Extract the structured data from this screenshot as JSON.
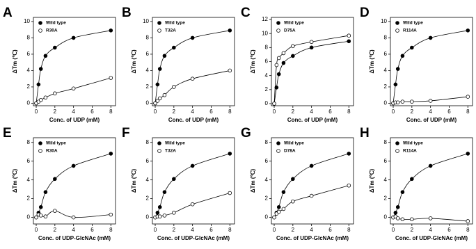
{
  "chart_data": [
    {
      "type": "scatter",
      "title": "A",
      "xlabel": "Conc. of UDP (mM)",
      "ylabel": "ΔTm (℃)",
      "xlim": [
        -0.3,
        8.5
      ],
      "ylim": [
        -0.3,
        10.5
      ],
      "xticks": [
        0,
        2,
        4,
        6,
        8
      ],
      "yticks": [
        0,
        2,
        4,
        6,
        8,
        10
      ],
      "legend": "upper left",
      "x": [
        0,
        0.25,
        0.5,
        1,
        2,
        4,
        8
      ],
      "series": [
        {
          "name": "Wild type",
          "color": "#000000",
          "filled": true,
          "values": [
            0,
            2.3,
            4.2,
            5.8,
            6.8,
            8.0,
            8.9
          ]
        },
        {
          "name": "R30A",
          "color": "#000000",
          "filled": false,
          "values": [
            0,
            0.2,
            0.4,
            0.7,
            1.2,
            1.8,
            3.1
          ]
        }
      ]
    },
    {
      "type": "scatter",
      "title": "B",
      "xlabel": "Conc. of UDP (mM)",
      "ylabel": "ΔTm (℃)",
      "xlim": [
        -0.3,
        8.5
      ],
      "ylim": [
        -0.3,
        10.5
      ],
      "xticks": [
        0,
        2,
        4,
        6,
        8
      ],
      "yticks": [
        0,
        2,
        4,
        6,
        8,
        10
      ],
      "legend": "upper left",
      "x": [
        0,
        0.25,
        0.5,
        1,
        2,
        4,
        8
      ],
      "series": [
        {
          "name": "Wild type",
          "color": "#000000",
          "filled": true,
          "values": [
            0,
            2.3,
            4.2,
            5.8,
            6.8,
            8.0,
            8.9
          ]
        },
        {
          "name": "T32A",
          "color": "#000000",
          "filled": false,
          "values": [
            0,
            0.3,
            0.6,
            1.0,
            2.0,
            3.0,
            4.0
          ]
        }
      ]
    },
    {
      "type": "scatter",
      "title": "C",
      "xlabel": "Conc. of UDP (mM)",
      "ylabel": "ΔTm (℃)",
      "xlim": [
        -0.3,
        8.5
      ],
      "ylim": [
        -0.3,
        12.3
      ],
      "xticks": [
        0,
        2,
        4,
        6,
        8
      ],
      "yticks": [
        0,
        2,
        4,
        6,
        8,
        10,
        12
      ],
      "legend": "upper left",
      "x": [
        0,
        0.25,
        0.5,
        1,
        2,
        4,
        8
      ],
      "series": [
        {
          "name": "Wild type",
          "color": "#000000",
          "filled": true,
          "values": [
            0,
            2.3,
            4.2,
            5.8,
            6.8,
            8.0,
            8.9
          ]
        },
        {
          "name": "D75A",
          "color": "#000000",
          "filled": false,
          "values": [
            0,
            5.5,
            6.5,
            7.2,
            8.2,
            8.8,
            9.7
          ]
        }
      ]
    },
    {
      "type": "scatter",
      "title": "D",
      "xlabel": "Conc. of UDP (mM)",
      "ylabel": "ΔTm (℃)",
      "xlim": [
        -0.3,
        8.5
      ],
      "ylim": [
        -0.3,
        10.5
      ],
      "xticks": [
        0,
        2,
        4,
        6,
        8
      ],
      "yticks": [
        0,
        2,
        4,
        6,
        8,
        10
      ],
      "legend": "upper left",
      "x": [
        0,
        0.25,
        0.5,
        1,
        2,
        4,
        8
      ],
      "series": [
        {
          "name": "Wild type",
          "color": "#000000",
          "filled": true,
          "values": [
            0,
            2.3,
            4.2,
            5.8,
            6.8,
            8.0,
            8.9
          ]
        },
        {
          "name": "R114A",
          "color": "#000000",
          "filled": false,
          "values": [
            0,
            0.1,
            0.1,
            0.2,
            0.2,
            0.3,
            0.8
          ]
        }
      ]
    },
    {
      "type": "scatter",
      "title": "E",
      "xlabel": "Conc. of UDP-GlcNAc (mM)",
      "ylabel": "ΔTm (℃)",
      "xlim": [
        -0.3,
        8.5
      ],
      "ylim": [
        -0.7,
        8.5
      ],
      "xticks": [
        0,
        2,
        4,
        6,
        8
      ],
      "yticks": [
        0,
        2,
        4,
        6,
        8
      ],
      "legend": "upper left",
      "x": [
        0,
        0.25,
        0.5,
        1,
        2,
        4,
        8
      ],
      "series": [
        {
          "name": "Wild type",
          "color": "#000000",
          "filled": true,
          "values": [
            0,
            0.5,
            1.1,
            2.7,
            4.1,
            5.5,
            6.8
          ]
        },
        {
          "name": "R30A",
          "color": "#000000",
          "filled": false,
          "values": [
            0,
            0.3,
            0.2,
            0.1,
            0.7,
            0,
            0.3
          ]
        }
      ]
    },
    {
      "type": "scatter",
      "title": "F",
      "xlabel": "Conc. of UDP-GlcNAc (mM)",
      "ylabel": "ΔTm (℃)",
      "xlim": [
        -0.3,
        8.5
      ],
      "ylim": [
        -0.7,
        8.5
      ],
      "xticks": [
        0,
        2,
        4,
        6,
        8
      ],
      "yticks": [
        0,
        2,
        4,
        6,
        8
      ],
      "legend": "upper left",
      "x": [
        0,
        0.25,
        0.5,
        1,
        2,
        4,
        8
      ],
      "series": [
        {
          "name": "Wild type",
          "color": "#000000",
          "filled": true,
          "values": [
            0,
            0.5,
            1.1,
            2.7,
            4.1,
            5.5,
            6.8
          ]
        },
        {
          "name": "T32A",
          "color": "#000000",
          "filled": false,
          "values": [
            0,
            0.1,
            0.1,
            0.2,
            0.5,
            1.4,
            2.6
          ]
        }
      ]
    },
    {
      "type": "scatter",
      "title": "G",
      "xlabel": "Conc. of UDP-GlcNAc (mM)",
      "ylabel": "ΔTm (℃)",
      "xlim": [
        -0.3,
        8.5
      ],
      "ylim": [
        -0.7,
        8.5
      ],
      "xticks": [
        0,
        2,
        4,
        6,
        8
      ],
      "yticks": [
        0,
        2,
        4,
        6,
        8
      ],
      "legend": "upper left",
      "x": [
        0,
        0.25,
        0.5,
        1,
        2,
        4,
        8
      ],
      "series": [
        {
          "name": "Wild type",
          "color": "#000000",
          "filled": true,
          "values": [
            0,
            0.5,
            1.1,
            2.7,
            4.1,
            5.5,
            6.8
          ]
        },
        {
          "name": "D78A",
          "color": "#000000",
          "filled": false,
          "values": [
            0,
            0.4,
            0.6,
            0.9,
            1.7,
            2.3,
            3.4
          ]
        }
      ]
    },
    {
      "type": "scatter",
      "title": "H",
      "xlabel": "Conc. of UDP-GlcNAc (mM)",
      "ylabel": "ΔTm (℃)",
      "xlim": [
        -0.3,
        8.5
      ],
      "ylim": [
        -0.7,
        8.5
      ],
      "xticks": [
        0,
        2,
        4,
        6,
        8
      ],
      "yticks": [
        0,
        2,
        4,
        6,
        8
      ],
      "legend": "upper left",
      "x": [
        0,
        0.25,
        0.5,
        1,
        2,
        4,
        8
      ],
      "series": [
        {
          "name": "Wild type",
          "color": "#000000",
          "filled": true,
          "values": [
            0,
            0.5,
            1.1,
            2.7,
            4.1,
            5.5,
            6.8
          ]
        },
        {
          "name": "R114A",
          "color": "#000000",
          "filled": false,
          "values": [
            0,
            0.1,
            -0.1,
            -0.2,
            -0.2,
            -0.1,
            -0.4
          ]
        }
      ]
    }
  ]
}
